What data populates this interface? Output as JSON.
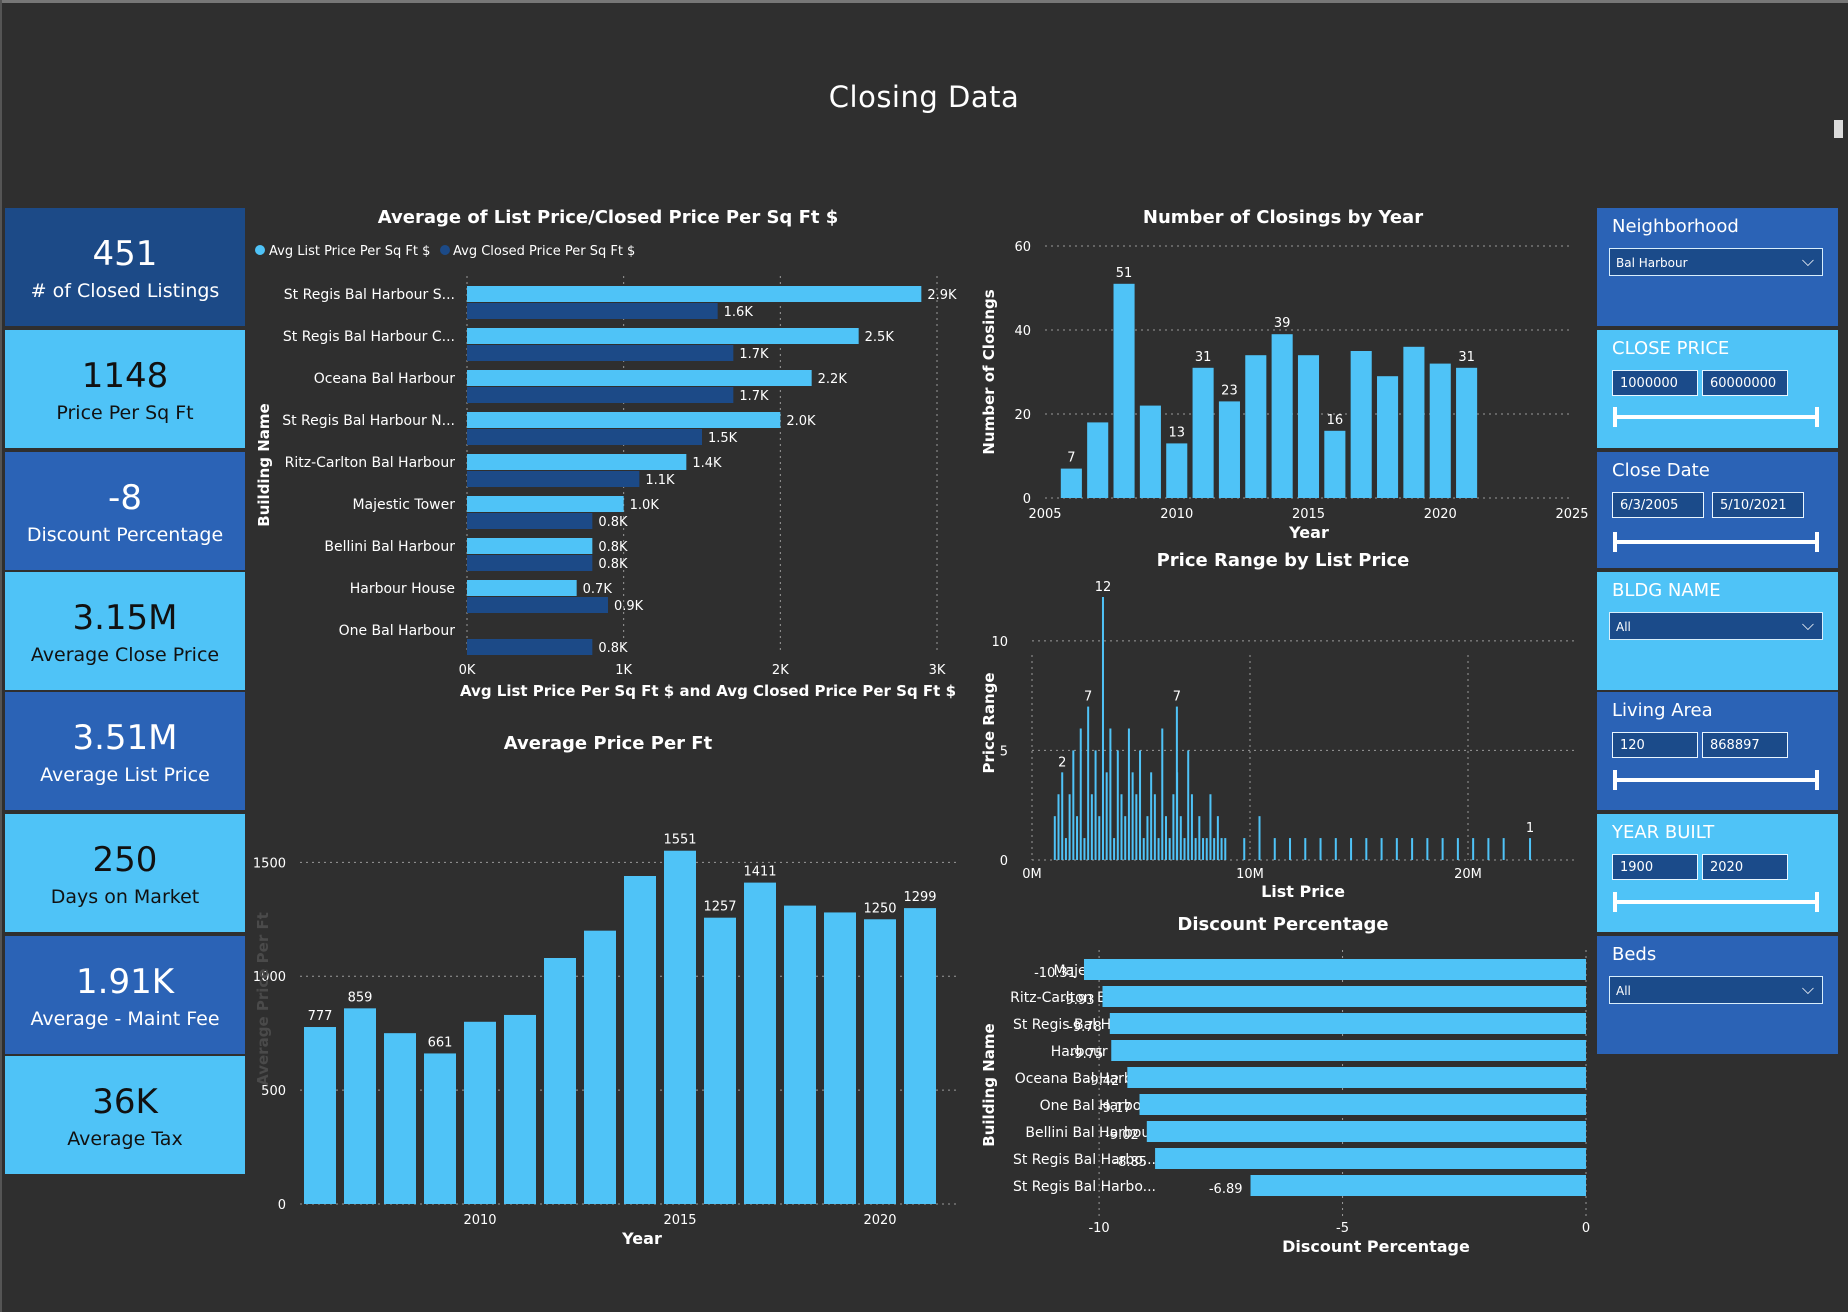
{
  "page": {
    "title": "Closing Data"
  },
  "kpis": [
    {
      "value": "451",
      "label": "# of Closed Listings",
      "color": "#1c4a87"
    },
    {
      "value": "1148",
      "label": "Price Per Sq Ft",
      "color": "#4fc3f7"
    },
    {
      "value": "-8",
      "label": "Discount Percentage",
      "color": "#2b63b6"
    },
    {
      "value": "3.15M",
      "label": "Average Close Price",
      "color": "#4fc3f7"
    },
    {
      "value": "3.51M",
      "label": "Average List Price",
      "color": "#2b63b6"
    },
    {
      "value": "250",
      "label": "Days on Market",
      "color": "#4fc3f7"
    },
    {
      "value": "1.91K",
      "label": "Average - Maint Fee",
      "color": "#2b63b6"
    },
    {
      "value": "36K",
      "label": "Average Tax",
      "color": "#4fc3f7"
    }
  ],
  "filters": {
    "neighborhood": {
      "label": "Neighborhood",
      "value": "Bal Harbour"
    },
    "close_price": {
      "label": "CLOSE PRICE",
      "min": "1000000",
      "max": "60000000"
    },
    "close_date": {
      "label": "Close Date",
      "min": "6/3/2005",
      "max": "5/10/2021"
    },
    "bldg_name": {
      "label": "BLDG NAME",
      "value": "All"
    },
    "living_area": {
      "label": "Living Area",
      "min": "120",
      "max": "868897"
    },
    "year_built": {
      "label": "YEAR BUILT",
      "min": "1900",
      "max": "2020"
    },
    "beds": {
      "label": "Beds",
      "value": "All"
    }
  },
  "colors": {
    "primary": "#4fc3f7",
    "secondary": "#1c4a87",
    "background": "#2f2f2f"
  },
  "chart_data": [
    {
      "type": "bar",
      "orientation": "horizontal",
      "title": "Average of List Price/Closed Price Per Sq Ft $",
      "xlabel": "Avg List Price Per Sq Ft $ and Avg Closed Price Per Sq Ft $",
      "ylabel": "Building Name",
      "xlim": [
        0,
        3000
      ],
      "xticks": [
        "0K",
        "1K",
        "2K",
        "3K"
      ],
      "categories": [
        "St Regis Bal Harbour S...",
        "St Regis Bal Harbour C...",
        "Oceana Bal Harbour",
        "St Regis Bal Harbour N...",
        "Ritz-Carlton Bal Harbour",
        "Majestic Tower",
        "Bellini Bal Harbour",
        "Harbour House",
        "One Bal Harbour"
      ],
      "series": [
        {
          "name": "Avg List Price Per Sq Ft $",
          "color": "#4fc3f7",
          "values": [
            2900,
            2500,
            2200,
            2000,
            1400,
            1000,
            800,
            700,
            null
          ],
          "labels": [
            "2.9K",
            "2.5K",
            "2.2K",
            "2.0K",
            "1.4K",
            "1.0K",
            "0.8K",
            "0.7K",
            ""
          ]
        },
        {
          "name": "Avg Closed Price Per Sq Ft $",
          "color": "#1c4a87",
          "values": [
            1600,
            1700,
            1700,
            1500,
            1100,
            800,
            800,
            900,
            800
          ],
          "labels": [
            "1.6K",
            "1.7K",
            "1.7K",
            "1.5K",
            "1.1K",
            "0.8K",
            "0.8K",
            "0.9K",
            "0.8K"
          ]
        }
      ],
      "legend": "top-left",
      "grid": true
    },
    {
      "type": "bar",
      "title": "Number of Closings by Year",
      "xlabel": "Year",
      "ylabel": "Number of Closings",
      "xlim": [
        2005,
        2025
      ],
      "ylim": [
        0,
        60
      ],
      "xticks": [
        2005,
        2010,
        2015,
        2020,
        2025
      ],
      "yticks": [
        0,
        20,
        40,
        60
      ],
      "x": [
        2006,
        2007,
        2008,
        2009,
        2010,
        2011,
        2012,
        2013,
        2014,
        2015,
        2016,
        2017,
        2018,
        2019,
        2020,
        2021
      ],
      "values": [
        7,
        18,
        51,
        22,
        13,
        31,
        23,
        34,
        39,
        34,
        16,
        35,
        29,
        36,
        32,
        31
      ],
      "data_labels": {
        "2006": "7",
        "2008": "51",
        "2010": "13",
        "2011": "31",
        "2012": "23",
        "2014": "39",
        "2016": "16",
        "2021": "31"
      },
      "grid": true
    },
    {
      "type": "bar",
      "title": "Price Range by List Price",
      "xlabel": "List Price",
      "ylabel": "Price Range",
      "xlim": [
        0,
        25000000
      ],
      "ylim": [
        0,
        12
      ],
      "xticks": [
        "0M",
        "10M",
        "20M"
      ],
      "yticks": [
        0,
        5,
        10
      ],
      "values": [
        2,
        3,
        4,
        1,
        3,
        5,
        2,
        6,
        1,
        7,
        3,
        5,
        2,
        12,
        4,
        6,
        1,
        5,
        3,
        2,
        6,
        4,
        3,
        5,
        1,
        2,
        4,
        3,
        1,
        6,
        2,
        1,
        3,
        4,
        2,
        1,
        5,
        3,
        1,
        2,
        1,
        1,
        3,
        1,
        2,
        1,
        1,
        7,
        1,
        2,
        1,
        1,
        1,
        1,
        1,
        1,
        1,
        1,
        1,
        1,
        1,
        1,
        1,
        1,
        1,
        1,
        1
      ],
      "data_labels": {
        "2": "2",
        "9": "7",
        "13": "12",
        "47": "7",
        "66": "1"
      },
      "grid": true
    },
    {
      "type": "bar",
      "title": "Average Price Per Ft",
      "xlabel": "Year",
      "ylabel": "Average Price Per Ft",
      "ylim": [
        0,
        1800
      ],
      "yticks": [
        0,
        500,
        1000,
        1500
      ],
      "xticks": [
        2010,
        2015,
        2020
      ],
      "x": [
        2006,
        2007,
        2008,
        2009,
        2010,
        2011,
        2012,
        2013,
        2014,
        2015,
        2016,
        2017,
        2018,
        2019,
        2020,
        2021
      ],
      "values": [
        777,
        859,
        750,
        661,
        800,
        830,
        1080,
        1200,
        1440,
        1551,
        1257,
        1411,
        1310,
        1280,
        1250,
        1299
      ],
      "data_labels": {
        "2006": "777",
        "2007": "859",
        "2009": "661",
        "2015": "1551",
        "2016": "1257",
        "2017": "1411",
        "2020": "1250",
        "2021": "1299"
      },
      "grid": true
    },
    {
      "type": "bar",
      "orientation": "horizontal",
      "title": "Discount Percentage",
      "xlabel": "Discount Percentage",
      "ylabel": "Building Name",
      "xlim": [
        -10.7,
        0
      ],
      "xticks": [
        -10,
        -5,
        0
      ],
      "categories": [
        "Majestic Tower",
        "Ritz-Carlton Bal Ha...",
        "St Regis Bal Harbo...",
        "Harbour House",
        "Oceana Bal Harbour",
        "One Bal Harbour",
        "Bellini Bal Harbour",
        "St Regis Bal Harbo...",
        "St Regis Bal Harbo..."
      ],
      "values": [
        -10.31,
        -9.93,
        -9.78,
        -9.75,
        -9.42,
        -9.17,
        -9.02,
        -8.85,
        -6.89
      ],
      "labels": [
        "-10.31",
        "-9.93",
        "-9.78",
        "-9.75",
        "-9.42",
        "-9.17",
        "-9.02",
        "-8.85",
        "-6.89"
      ],
      "grid": true
    }
  ]
}
